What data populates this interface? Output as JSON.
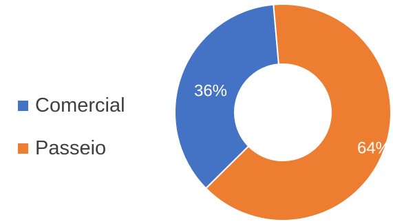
{
  "chart_data": {
    "type": "pie",
    "variant": "doughnut",
    "categories": [
      "Comercial",
      "Passeio"
    ],
    "values": [
      36,
      64
    ],
    "labels": [
      "36%",
      "64%"
    ],
    "colors": [
      "#4472C4",
      "#ED7D31"
    ],
    "legend_placement": "left"
  },
  "legend": [
    {
      "label": "Comercial",
      "color": "#4472C4"
    },
    {
      "label": "Passeio",
      "color": "#ED7D31"
    }
  ]
}
